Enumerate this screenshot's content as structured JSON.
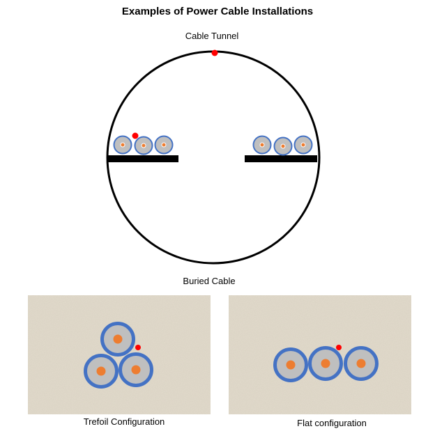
{
  "title": "Examples of Power Cable Installations",
  "tunnel": {
    "label": "Cable Tunnel"
  },
  "buried": {
    "label": "Buried Cable",
    "trefoil_label": "Trefoil Configuration",
    "flat_label": "Flat configuration"
  },
  "colors": {
    "cable_outer": "#4472c4",
    "cable_insulation": "#bfbfbf",
    "cable_core": "#ed7d31",
    "sensor_dot": "#ff0000",
    "shelf": "#000000",
    "soil": "#e3dccd"
  }
}
